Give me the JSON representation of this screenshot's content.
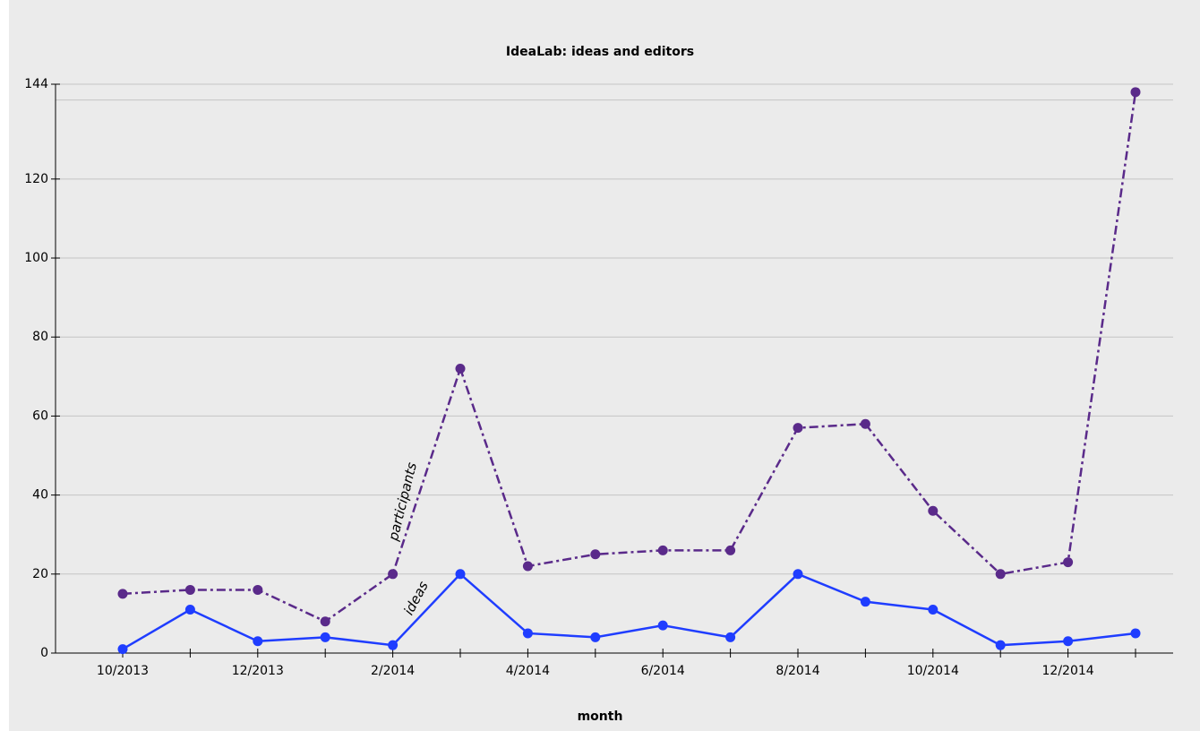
{
  "chart_data": {
    "type": "line",
    "title": "IdeaLab: ideas and editors",
    "x_label": "month",
    "categories": [
      "10/2013",
      null,
      "12/2013",
      null,
      "2/2014",
      null,
      "4/2014",
      null,
      "6/2014",
      null,
      "8/2014",
      null,
      "10/2014",
      null,
      "12/2014",
      null
    ],
    "series": [
      {
        "name": "participants",
        "color": "#5a2a8a",
        "dash": "dash-dot",
        "values": [
          15,
          16,
          16,
          8,
          20,
          72,
          22,
          25,
          26,
          26,
          57,
          58,
          36,
          20,
          23,
          142
        ]
      },
      {
        "name": "ideas",
        "color": "#1f3dff",
        "dash": "solid",
        "values": [
          1,
          11,
          3,
          4,
          2,
          20,
          5,
          4,
          7,
          4,
          20,
          13,
          11,
          2,
          3,
          5
        ]
      }
    ],
    "ylim": [
      0,
      144
    ],
    "yticks": [
      0,
      20,
      40,
      60,
      80,
      100,
      120,
      144
    ],
    "ygrid": [
      0,
      20,
      40,
      60,
      80,
      100,
      120,
      140,
      144
    ],
    "grid": true
  }
}
